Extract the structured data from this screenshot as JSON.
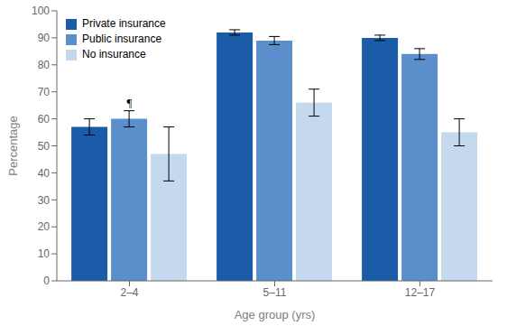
{
  "chart_data": {
    "type": "bar",
    "categories": [
      "2–4",
      "5–11",
      "12–17"
    ],
    "series": [
      {
        "name": "Private insurance",
        "color": "#1a5ca8",
        "values": [
          57,
          92,
          90
        ],
        "errors": [
          3,
          1,
          1
        ]
      },
      {
        "name": "Public insurance",
        "color": "#5b8fcb",
        "values": [
          60,
          89,
          84
        ],
        "errors": [
          3,
          1.5,
          2
        ]
      },
      {
        "name": "No insurance",
        "color": "#c5d9ee",
        "values": [
          47,
          66,
          55
        ],
        "errors": [
          10,
          5,
          5
        ]
      }
    ],
    "xlabel": "Age group (yrs)",
    "ylabel": "Percentage",
    "ylim": [
      0,
      100
    ],
    "yticks": [
      0,
      10,
      20,
      30,
      40,
      50,
      60,
      70,
      80,
      90,
      100
    ],
    "grid": false,
    "legend": "upper left",
    "annotations": [
      {
        "text": "¶",
        "x": "2–4",
        "y": 63
      }
    ]
  }
}
